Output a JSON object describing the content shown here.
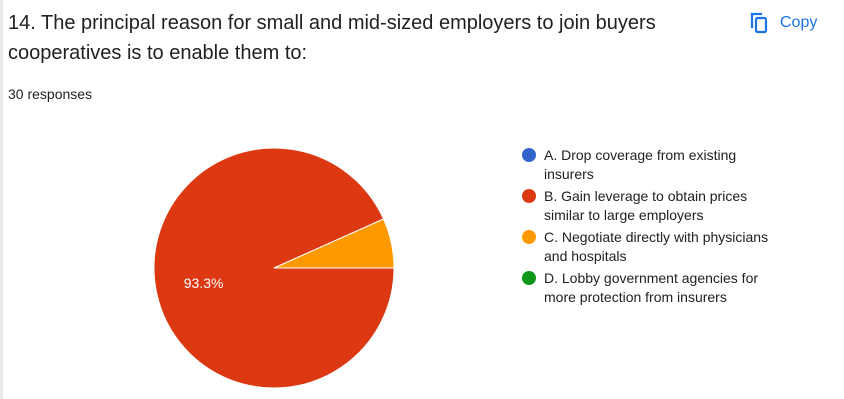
{
  "question": {
    "title": "14. The principal reason for small and mid-sized employers to join buyers cooperatives is to enable them to:",
    "responses": "30 responses"
  },
  "toolbar": {
    "copy_label": "Copy",
    "copy_icon": "copy-icon"
  },
  "chart_data": {
    "type": "pie",
    "categories": [
      "A. Drop coverage from existing insurers",
      "B. Gain leverage to obtain prices similar to large employers",
      "C. Negotiate directly with physicians and hospitals",
      "D. Lobby government agencies for more protection from insurers"
    ],
    "values": [
      0,
      93.3,
      6.7,
      0
    ],
    "data_labels": [
      "",
      "93.3%",
      "",
      ""
    ],
    "colors": [
      "#3366cc",
      "#dc3912",
      "#ff9900",
      "#109618"
    ],
    "legend_position": "right"
  }
}
